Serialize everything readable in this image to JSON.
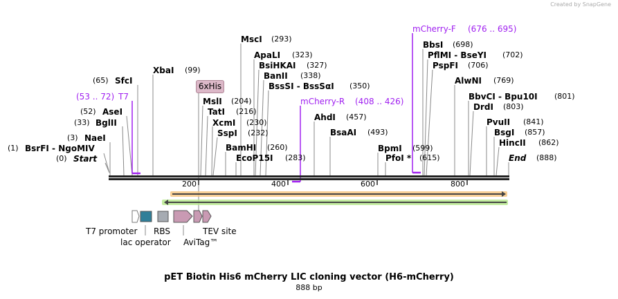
{
  "credit": "Created by SnapGene",
  "title": "pET Biotin His6 mCherry LIC cloning vector (H6-mCherry)",
  "length": "888 bp",
  "ruler": [
    "200",
    "400",
    "600",
    "800"
  ],
  "sites": [
    {
      "name": "Start",
      "pos": "(0)"
    },
    {
      "name": "BsrFI  - NgoMIV",
      "pos": "(1)"
    },
    {
      "name": "NaeI",
      "pos": "(3)"
    },
    {
      "name": "BglII",
      "pos": "(33)"
    },
    {
      "name": "AseI",
      "pos": "(52)"
    },
    {
      "name": "SfcI",
      "pos": "(65)"
    },
    {
      "name": "XbaI",
      "pos": "(99)"
    },
    {
      "name": "MslI",
      "pos": "(204)"
    },
    {
      "name": "TatI",
      "pos": "(216)"
    },
    {
      "name": "XcmI",
      "pos": "(230)"
    },
    {
      "name": "SspI",
      "pos": "(232)"
    },
    {
      "name": "BamHI",
      "pos": "(260)"
    },
    {
      "name": "EcoP15I",
      "pos": "(283)"
    },
    {
      "name": "MscI",
      "pos": "(293)"
    },
    {
      "name": "ApaLI",
      "pos": "(323)"
    },
    {
      "name": "BsiHKAI",
      "pos": "(327)"
    },
    {
      "name": "BanII",
      "pos": "(338)"
    },
    {
      "name": "BssSI  - BssSαI",
      "pos": "(350)"
    },
    {
      "name": "AhdI",
      "pos": "(457)"
    },
    {
      "name": "BsaAI",
      "pos": "(493)"
    },
    {
      "name": "BpmI",
      "pos": "(599)"
    },
    {
      "name": "PfoI *",
      "pos": "(615)"
    },
    {
      "name": "BbsI",
      "pos": "(698)"
    },
    {
      "name": "PflMI  - BseYI",
      "pos": "(702)"
    },
    {
      "name": "PspFI",
      "pos": "(706)"
    },
    {
      "name": "AlwNI",
      "pos": "(769)"
    },
    {
      "name": "BbvCI  - Bpu10I",
      "pos": "(801)"
    },
    {
      "name": "DrdI",
      "pos": "(803)"
    },
    {
      "name": "PvuII",
      "pos": "(841)"
    },
    {
      "name": "BsgI",
      "pos": "(857)"
    },
    {
      "name": "HincII",
      "pos": "(862)"
    },
    {
      "name": "End",
      "pos": "(888)"
    }
  ],
  "primers": [
    {
      "name": "T7",
      "range": "(53 .. 72)"
    },
    {
      "name": "mCherry-R",
      "range": "(408 .. 426)"
    },
    {
      "name": "mCherry-F",
      "range": "(676 .. 695)"
    }
  ],
  "tag": "6xHis",
  "features": [
    "T7 promoter",
    "lac operator",
    "RBS",
    "AviTag™",
    "TEV site"
  ],
  "colors": {
    "primer": "#a020f0",
    "orf_fwd": "#f5c37a",
    "orf_rev": "#b5e88a",
    "lac": "#2f7f99",
    "rbs": "#a6abb2",
    "tag": "#c99ab3"
  }
}
